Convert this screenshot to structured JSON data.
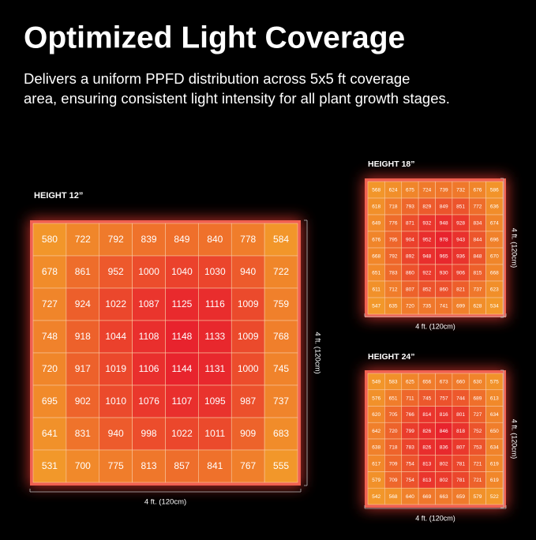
{
  "header": {
    "title": "Optimized Light Coverage",
    "subtitle": [
      "Delivers a uniform PPFD distribution across 5x5 ft coverage",
      "area, ensuring consistent light intensity for all plant growth stages."
    ]
  },
  "panels": [
    {
      "label": "HEIGHT 12”",
      "width_label": "4 ft. (120cm)",
      "height_label": "4 ft. (120cm)",
      "rows": [
        [
          580,
          722,
          792,
          839,
          849,
          840,
          778,
          584
        ],
        [
          678,
          861,
          952,
          1000,
          1040,
          1030,
          940,
          722
        ],
        [
          727,
          924,
          1022,
          1087,
          1125,
          1116,
          1009,
          759
        ],
        [
          748,
          918,
          1044,
          1108,
          1148,
          1133,
          1009,
          768
        ],
        [
          720,
          917,
          1019,
          1106,
          1144,
          1131,
          1000,
          745
        ],
        [
          695,
          902,
          1010,
          1076,
          1107,
          1095,
          987,
          737
        ],
        [
          641,
          831,
          940,
          998,
          1022,
          1011,
          909,
          683
        ],
        [
          531,
          700,
          775,
          813,
          857,
          841,
          767,
          555
        ]
      ]
    },
    {
      "label": "HEIGHT 18”",
      "width_label": "4 ft. (120cm)",
      "height_label": "4 ft. (120cm)",
      "rows": [
        [
          568,
          624,
          675,
          724,
          739,
          732,
          676,
          586
        ],
        [
          618,
          718,
          793,
          829,
          849,
          851,
          772,
          636
        ],
        [
          649,
          776,
          871,
          932,
          948,
          928,
          834,
          674
        ],
        [
          676,
          795,
          904,
          952,
          978,
          943,
          844,
          696
        ],
        [
          668,
          792,
          892,
          948,
          965,
          936,
          848,
          670
        ],
        [
          651,
          783,
          860,
          922,
          930,
          906,
          815,
          668
        ],
        [
          611,
          712,
          807,
          852,
          860,
          821,
          737,
          623
        ],
        [
          547,
          635,
          720,
          735,
          741,
          699,
          628,
          534
        ]
      ]
    },
    {
      "label": "HEIGHT 24”",
      "width_label": "4 ft. (120cm)",
      "height_label": "4 ft. (120cm)",
      "rows": [
        [
          549,
          583,
          625,
          656,
          673,
          660,
          630,
          575
        ],
        [
          576,
          651,
          711,
          745,
          757,
          744,
          689,
          613
        ],
        [
          620,
          705,
          766,
          814,
          816,
          801,
          727,
          634
        ],
        [
          642,
          720,
          799,
          826,
          846,
          818,
          752,
          650
        ],
        [
          638,
          718,
          783,
          826,
          836,
          807,
          753,
          634
        ],
        [
          617,
          709,
          754,
          813,
          802,
          781,
          721,
          619
        ],
        [
          579,
          709,
          754,
          813,
          802,
          781,
          721,
          619
        ],
        [
          542,
          568,
          640,
          669,
          663,
          659,
          579,
          522
        ]
      ]
    }
  ]
}
